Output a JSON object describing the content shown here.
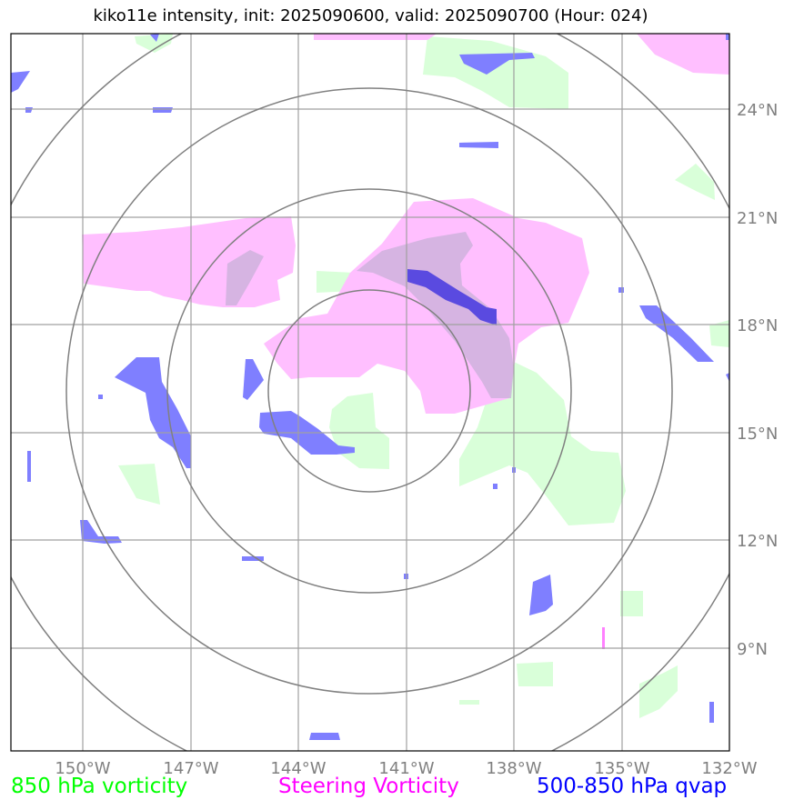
{
  "title": "kiko11e intensity, init: 2025090600, valid: 2025090700 (Hour: 024)",
  "longitude_labels": [
    "150°W",
    "147°W",
    "144°W",
    "141°W",
    "138°W",
    "135°W",
    "132°W"
  ],
  "latitude_labels": [
    "24°N",
    "21°N",
    "18°N",
    "15°N",
    "12°N",
    "9°N"
  ],
  "legend": {
    "vorticity_850": {
      "label": "850 hPa vorticity",
      "color": "#00ff00"
    },
    "steering": {
      "label": "Steering Vorticity",
      "color": "#ff00ff"
    },
    "qvap": {
      "label": "500-850 hPa qvap",
      "color": "#0000ff"
    }
  },
  "colors": {
    "vorticity_fill": "#d9ffd9",
    "steering_fill": "#ffbfff",
    "qvap_fill": "#7f7fff",
    "grid": "#a0a0a0",
    "range_rings": "#808080"
  },
  "map": {
    "lon_range": [
      -152,
      -132
    ],
    "lat_range": [
      6.5,
      26.5
    ],
    "center": {
      "lon": -142,
      "lat": 16.1
    }
  }
}
